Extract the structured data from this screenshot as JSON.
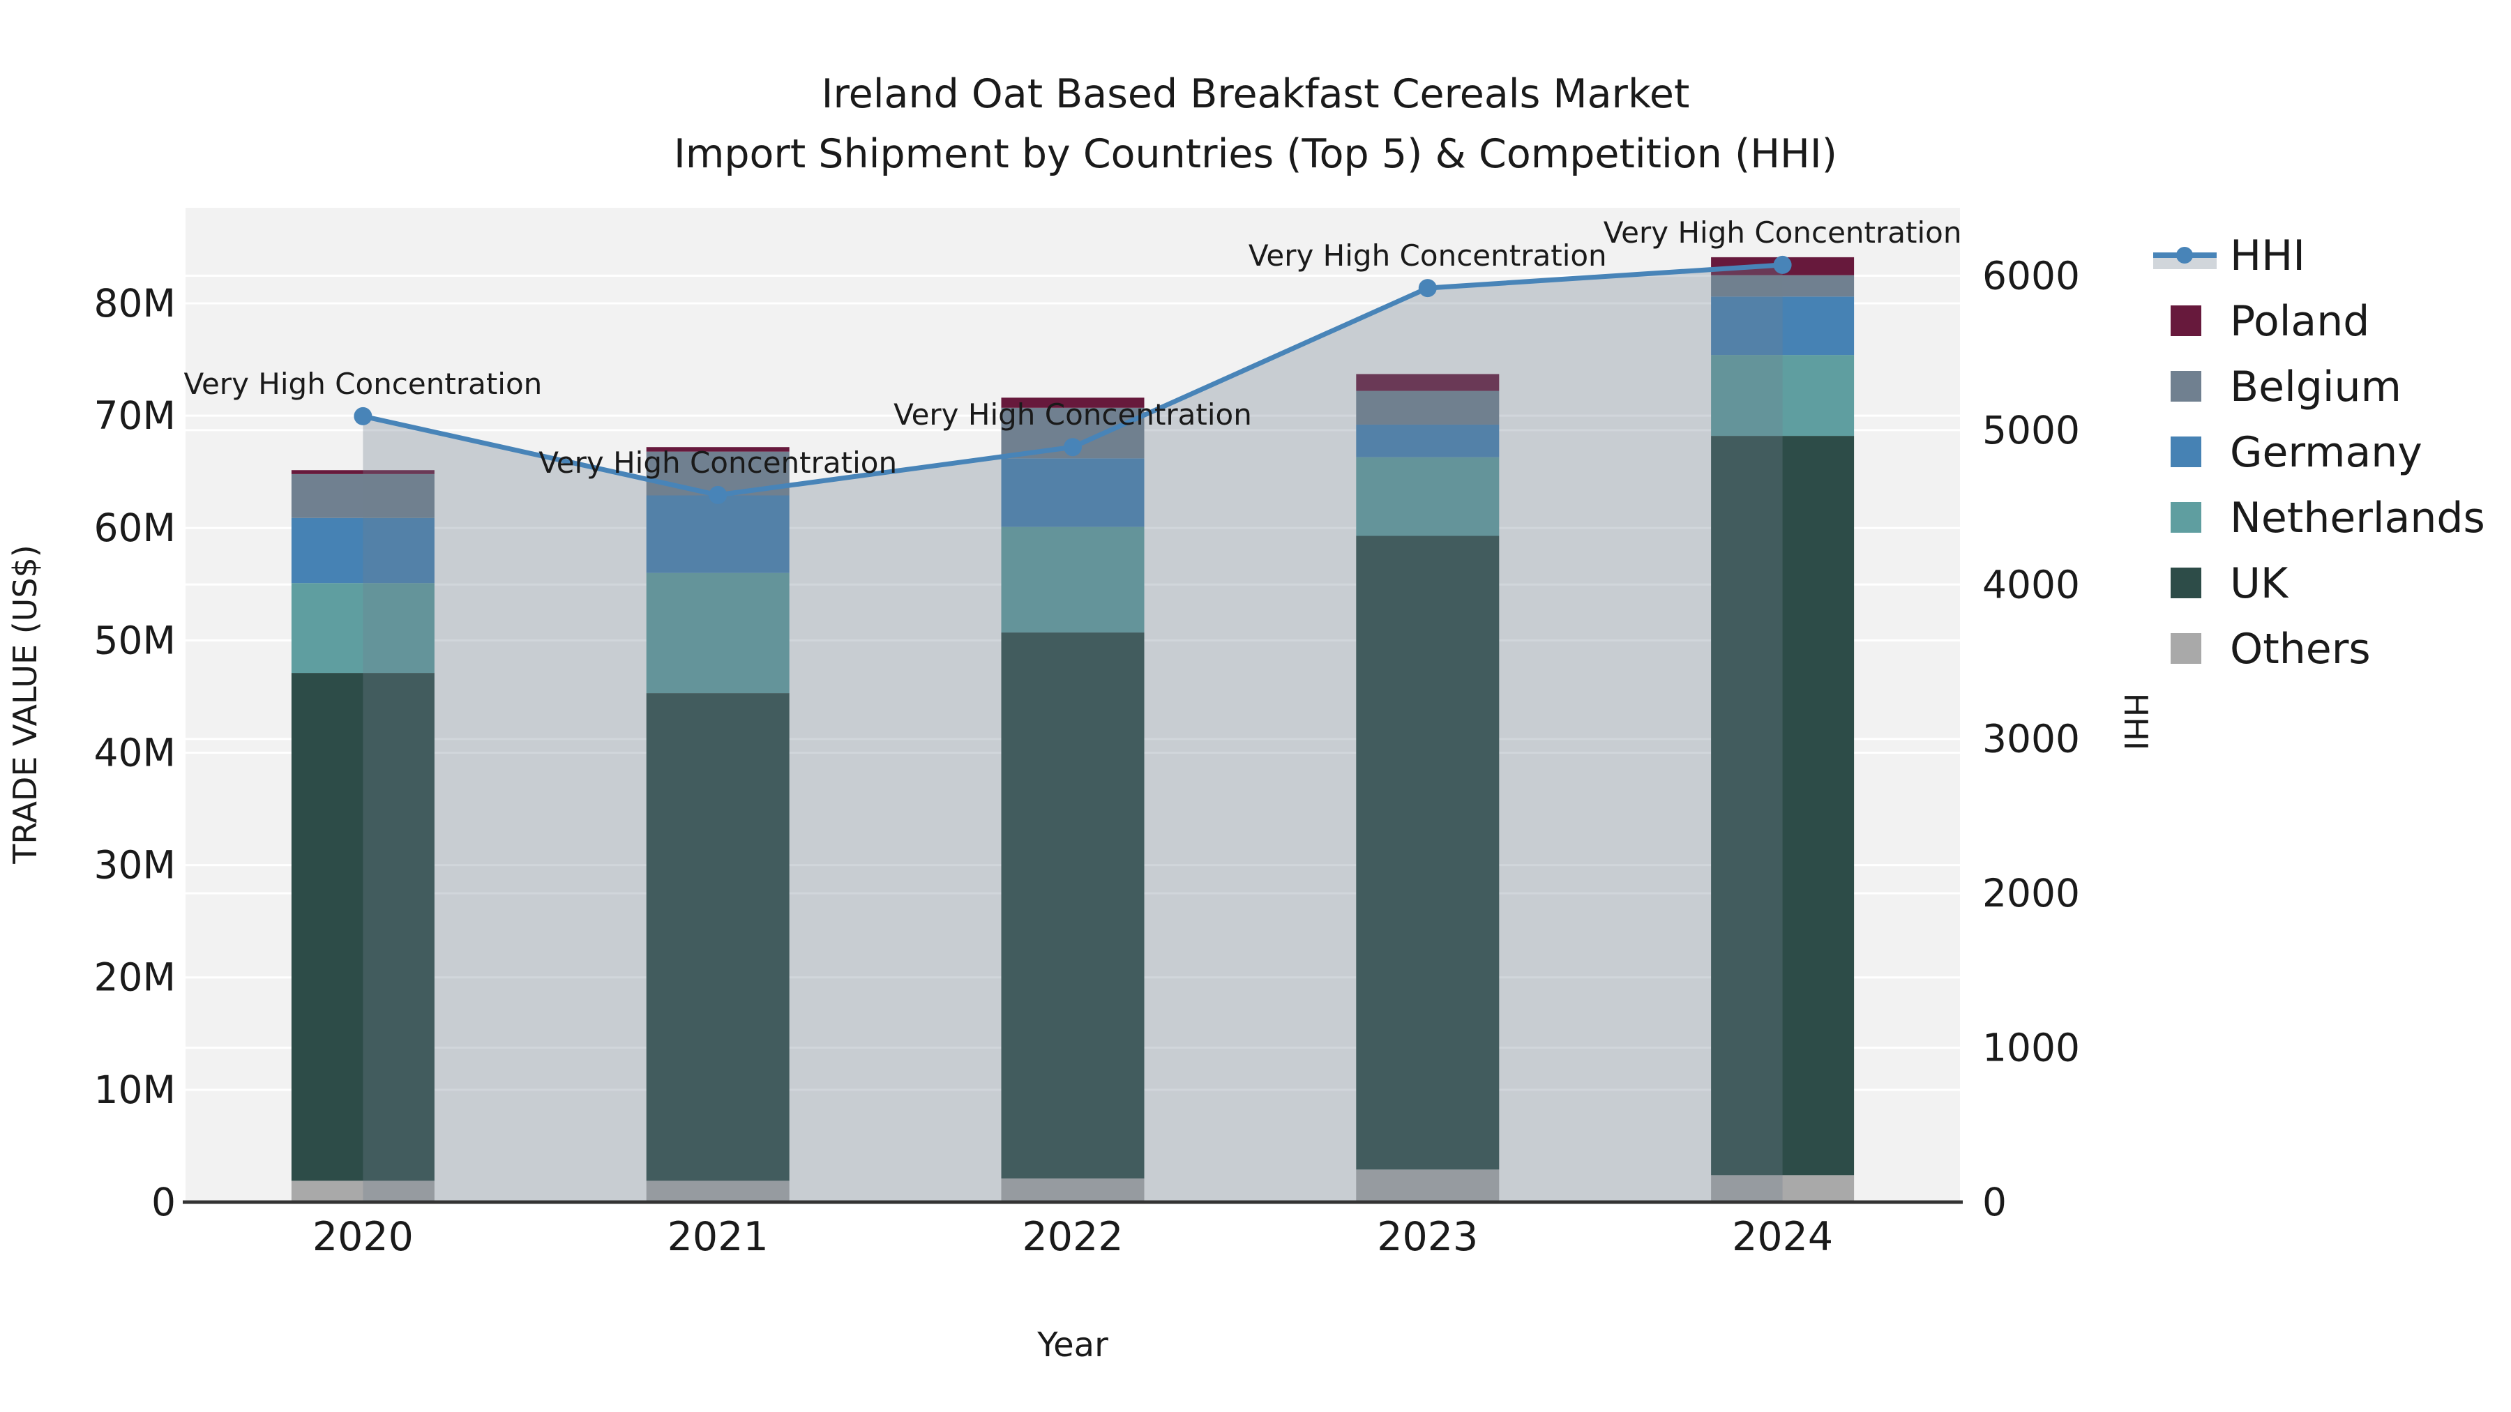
{
  "title": {
    "line1": "Ireland Oat Based Breakfast Cereals Market",
    "line2": "Import Shipment by Countries (Top 5) & Competition (HHI)"
  },
  "chart_data": {
    "type": "bar",
    "subtype": "stacked-bars-with-dual-axis-line",
    "title": "Ireland Oat Based Breakfast Cereals Market — Import Shipment by Countries (Top 5) & Competition (HHI)",
    "xlabel": "Year",
    "ylabel_left": "TRADE VALUE (US$)",
    "ylabel_right": "HHI",
    "categories": [
      "2020",
      "2021",
      "2022",
      "2023",
      "2024"
    ],
    "series": [
      {
        "name": "Others",
        "color": "#a9a9a9",
        "values": [
          1.9,
          1.9,
          2.1,
          2.9,
          2.4
        ]
      },
      {
        "name": "UK",
        "color": "#2d4c48",
        "values": [
          45.2,
          43.4,
          48.6,
          56.4,
          65.8
        ]
      },
      {
        "name": "Netherlands",
        "color": "#5f9ea0",
        "values": [
          8.0,
          10.7,
          9.4,
          7.0,
          7.2
        ]
      },
      {
        "name": "Germany",
        "color": "#4682b4",
        "values": [
          5.8,
          6.9,
          6.1,
          2.9,
          5.2
        ]
      },
      {
        "name": "Belgium",
        "color": "#708090",
        "values": [
          3.9,
          3.9,
          4.5,
          3.0,
          1.9
        ]
      },
      {
        "name": "Poland",
        "color": "#67193c",
        "values": [
          0.35,
          0.4,
          0.9,
          1.5,
          1.6
        ]
      }
    ],
    "bar_totals_label_unit": "M",
    "line_series": {
      "name": "HHI",
      "axis": "right",
      "color": "#4884b8",
      "fill": "rgba(112,128,144,0.32)",
      "values": [
        5090,
        4580,
        4890,
        5920,
        6070
      ]
    },
    "point_annotations": [
      "Very High Concentration",
      "Very High Concentration",
      "Very High Concentration",
      "Very High Concentration",
      "Very High Concentration"
    ],
    "left_axis": {
      "max": 88.5,
      "ticks": [
        {
          "v": 0,
          "label": "0"
        },
        {
          "v": 10,
          "label": "10M"
        },
        {
          "v": 20,
          "label": "20M"
        },
        {
          "v": 30,
          "label": "30M"
        },
        {
          "v": 40,
          "label": "40M"
        },
        {
          "v": 50,
          "label": "50M"
        },
        {
          "v": 60,
          "label": "60M"
        },
        {
          "v": 70,
          "label": "70M"
        },
        {
          "v": 80,
          "label": "80M"
        }
      ]
    },
    "right_axis": {
      "max": 6440,
      "ticks": [
        {
          "v": 0,
          "label": "0"
        },
        {
          "v": 1000,
          "label": "1000"
        },
        {
          "v": 2000,
          "label": "2000"
        },
        {
          "v": 3000,
          "label": "3000"
        },
        {
          "v": 4000,
          "label": "4000"
        },
        {
          "v": 5000,
          "label": "5000"
        },
        {
          "v": 6000,
          "label": "6000"
        }
      ]
    },
    "legend": {
      "position": "right",
      "entries": [
        "HHI",
        "Poland",
        "Belgium",
        "Germany",
        "Netherlands",
        "UK",
        "Others"
      ]
    },
    "grid": true,
    "plot_background": "#f2f2f2",
    "gridline_color": "#ffffff"
  }
}
